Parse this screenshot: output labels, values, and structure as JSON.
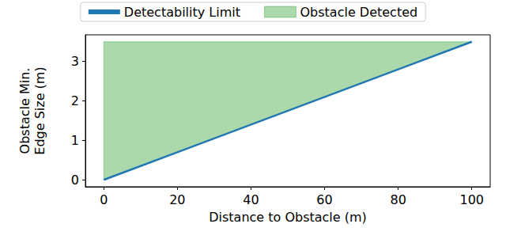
{
  "chart_data": {
    "type": "line",
    "x_label": "Distance to Obstacle (m)",
    "y_label": "Obstacle Min.\nEdge Size (m)",
    "x": [
      0,
      100
    ],
    "series": [
      {
        "name": "Detectability Limit",
        "type": "line",
        "color": "#1f77b4",
        "values": [
          0,
          3.5
        ]
      },
      {
        "name": "Obstacle Detected",
        "type": "area",
        "color": "#2ca02c",
        "lower": [
          0,
          3.5
        ],
        "upper": [
          3.5,
          3.5
        ]
      }
    ],
    "xlim": [
      -5,
      105
    ],
    "xticks": [
      0,
      20,
      40,
      60,
      80,
      100
    ],
    "ylim": [
      -0.175,
      3.675
    ],
    "yticks": [
      0,
      1,
      2,
      3
    ],
    "grid": false,
    "legend": "top"
  }
}
